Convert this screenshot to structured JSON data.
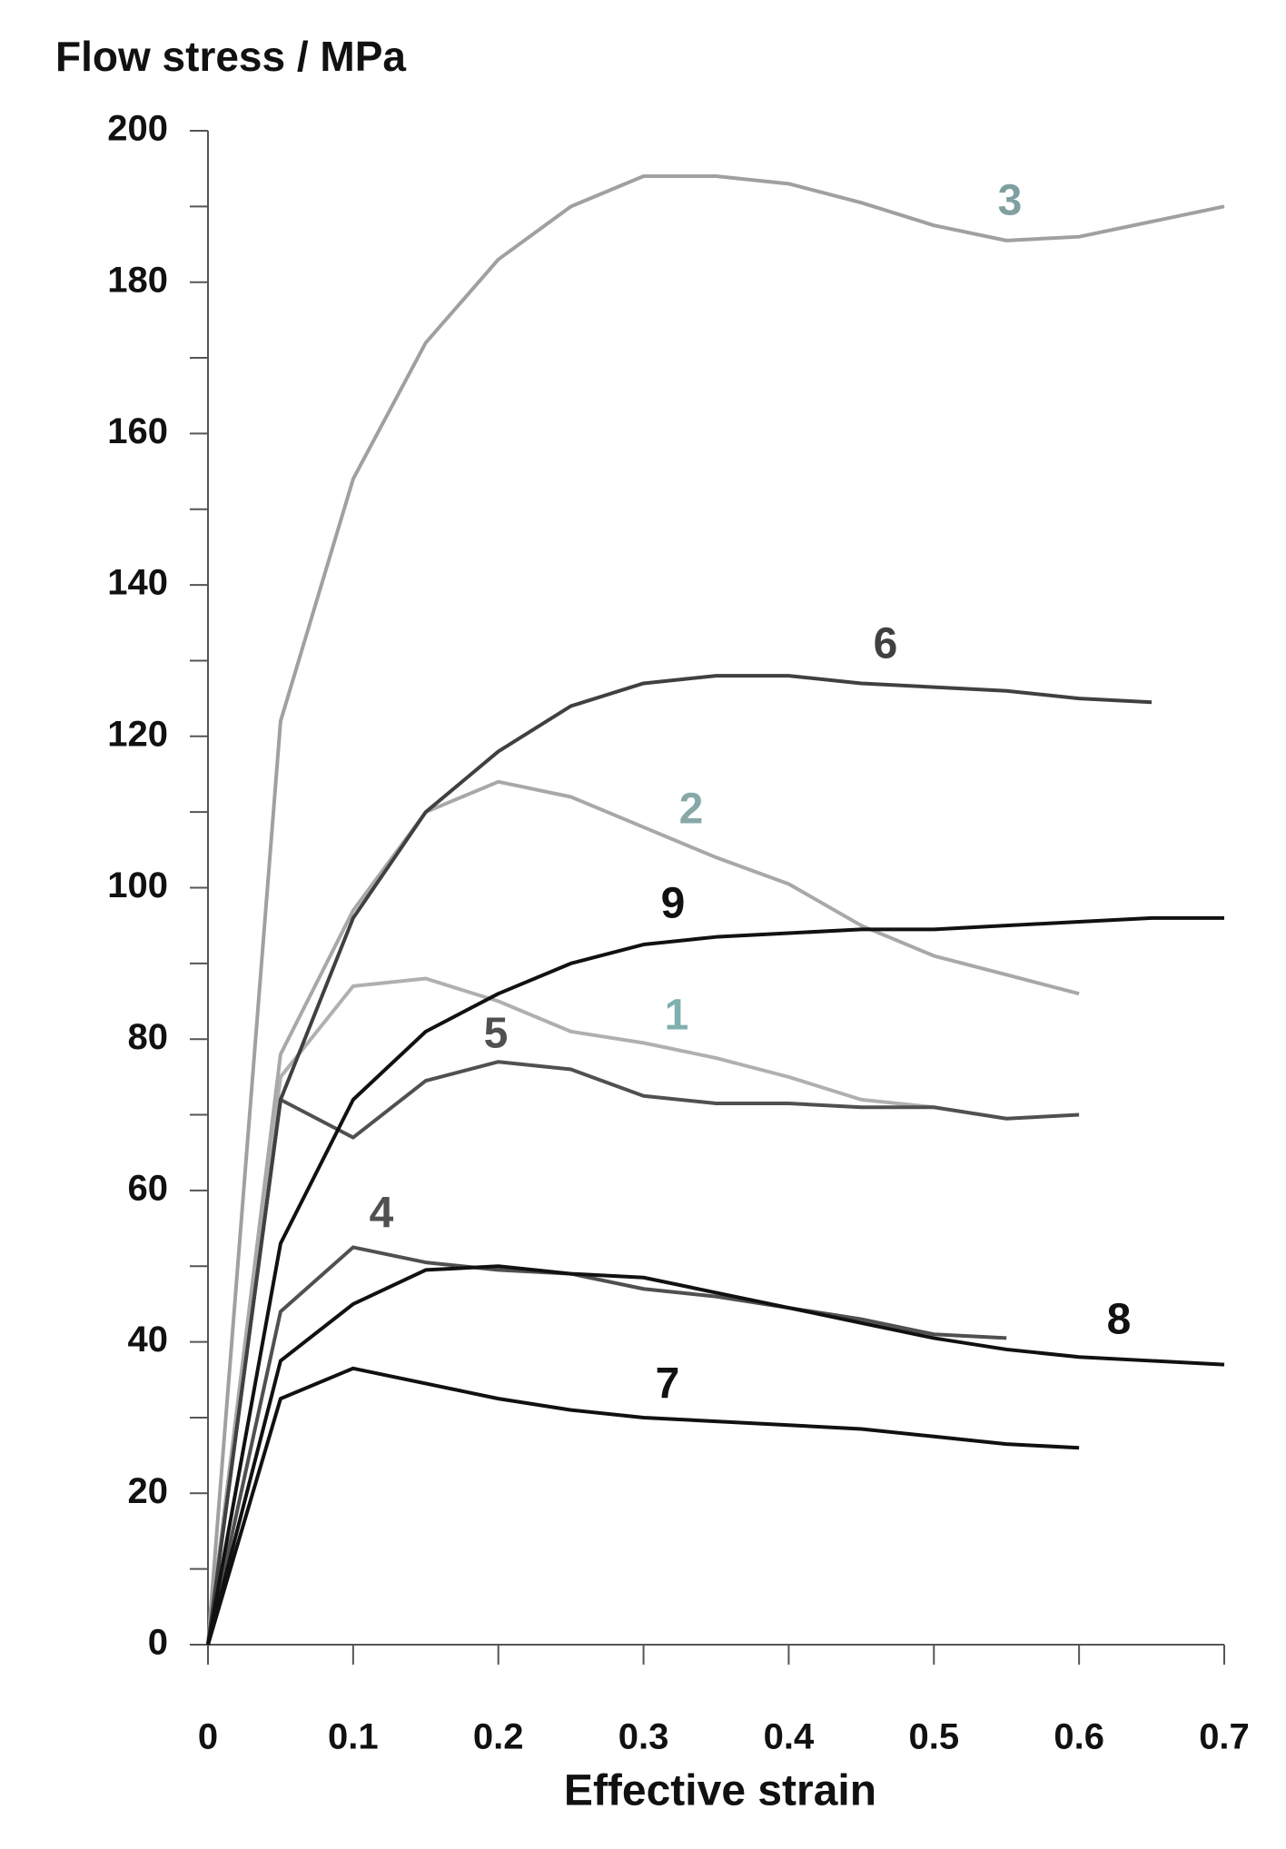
{
  "chart_data": {
    "type": "line",
    "y_label": "Flow stress / MPa",
    "x_label": "Effective strain",
    "x": [
      0,
      0.05,
      0.1,
      0.15,
      0.2,
      0.25,
      0.3,
      0.35,
      0.4,
      0.45,
      0.5,
      0.55,
      0.6,
      0.65,
      0.7
    ],
    "xlim": [
      0,
      0.7
    ],
    "xticks": [
      0,
      0.1,
      0.2,
      0.3,
      0.4,
      0.5,
      0.6,
      0.7
    ],
    "ylim": [
      0,
      200
    ],
    "yticks": [
      0,
      20,
      40,
      60,
      80,
      100,
      120,
      140,
      160,
      180,
      200
    ],
    "series": [
      {
        "name": "1",
        "color": "#b0b0b0",
        "values": [
          0,
          75,
          87,
          88,
          85,
          81,
          79.5,
          77.5,
          75,
          72,
          71,
          null,
          null,
          null,
          null
        ]
      },
      {
        "name": "2",
        "color": "#a8a8a8",
        "values": [
          0,
          78,
          97,
          110,
          114,
          112,
          108,
          104,
          100.5,
          95,
          91,
          88.5,
          86,
          null,
          null
        ]
      },
      {
        "name": "3",
        "color": "#a0a0a0",
        "values": [
          0,
          122,
          154,
          172,
          183,
          190,
          194,
          194,
          193,
          190.5,
          187.5,
          185.5,
          186,
          188,
          190
        ]
      },
      {
        "name": "4",
        "color": "#505050",
        "values": [
          0,
          44,
          52.5,
          50.5,
          49.5,
          49,
          47,
          46,
          44.5,
          43,
          41,
          40.5,
          null,
          null,
          null
        ]
      },
      {
        "name": "5",
        "color": "#505050",
        "values": [
          0,
          72,
          67,
          74.5,
          77,
          76,
          72.5,
          71.5,
          71.5,
          71,
          71,
          69.5,
          70,
          null,
          null
        ]
      },
      {
        "name": "6",
        "color": "#404040",
        "values": [
          0,
          72,
          96,
          110,
          118,
          124,
          127,
          128,
          128,
          127,
          126.5,
          126,
          125,
          124.5,
          null
        ]
      },
      {
        "name": "7",
        "color": "#111111",
        "values": [
          0,
          32.5,
          36.5,
          34.5,
          32.5,
          31,
          30,
          29.5,
          29,
          28.5,
          27.5,
          26.5,
          26,
          null,
          null
        ]
      },
      {
        "name": "8",
        "color": "#111111",
        "values": [
          0,
          37.5,
          45,
          49.5,
          50,
          49,
          48.5,
          46.5,
          44.5,
          42.5,
          40.5,
          39,
          38,
          37.5,
          37
        ]
      },
      {
        "name": "9",
        "color": "#111111",
        "values": [
          0,
          53,
          72,
          81,
          86,
          90,
          92.5,
          93.5,
          94,
          94.5,
          94.5,
          95,
          95.5,
          96,
          96
        ]
      }
    ]
  }
}
